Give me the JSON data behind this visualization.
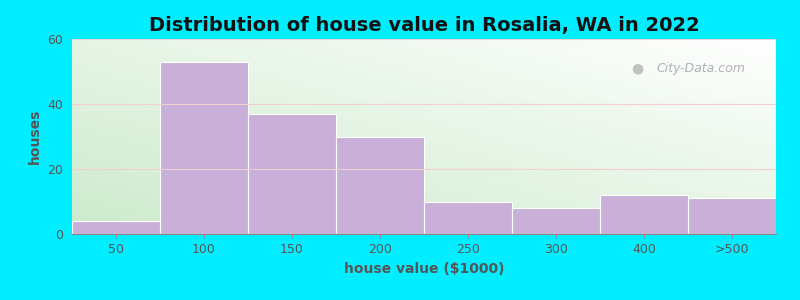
{
  "title": "Distribution of house value in Rosalia, WA in 2022",
  "xlabel": "house value ($1000)",
  "ylabel": "houses",
  "categories": [
    "50",
    "100",
    "150",
    "200",
    "250",
    "300",
    "400",
    ">500"
  ],
  "bar_lefts": [
    0,
    1,
    2,
    3,
    4,
    5,
    6,
    7
  ],
  "values": [
    4,
    53,
    37,
    30,
    10,
    8,
    12,
    11
  ],
  "bar_color": "#c8b0d8",
  "bar_edgecolor": "#ffffff",
  "ylim": [
    0,
    60
  ],
  "yticks": [
    0,
    20,
    40,
    60
  ],
  "bg_outer": "#00eeff",
  "bg_plot_topleft": "#cceacc",
  "bg_plot_bottomright": "#ffffff",
  "title_fontsize": 14,
  "axis_label_fontsize": 10,
  "tick_fontsize": 9,
  "watermark_text": "City-Data.com",
  "watermark_color": "#aaaaaa",
  "tick_color": "#555555",
  "label_color": "#555555"
}
